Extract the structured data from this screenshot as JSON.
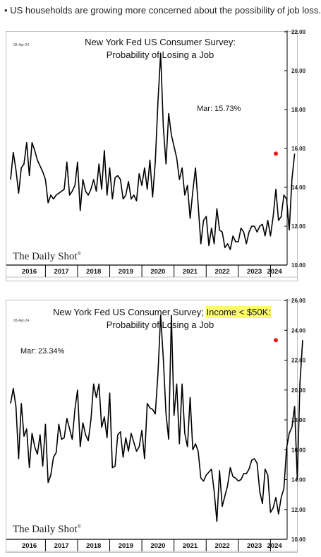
{
  "headline": "US households are growing more concerned about the possibility of job loss.",
  "bullet": "•",
  "logo": "The Daily Shot",
  "logo_mark": "®",
  "years": [
    "2016",
    "2017",
    "2018",
    "2019",
    "2020",
    "2021",
    "2022",
    "2023",
    "2024"
  ],
  "colors": {
    "line": "#000000",
    "marker": "#e8161b",
    "highlight": "#ffff66"
  },
  "chart_data": [
    {
      "type": "line",
      "date_stamp": "08-Apr-24",
      "title_line1": "New York Fed US Consumer Survey:",
      "title_line2": "Probability of Losing a Job",
      "annotation": "Mar:   15.73%",
      "ylim": [
        10,
        22
      ],
      "yticks": [
        "10.00",
        "12.00",
        "14.00",
        "16.00",
        "18.00",
        "20.00",
        "22.00"
      ],
      "x_start": "2015-12",
      "x_end": "2024-03",
      "last_point": {
        "x": "2024-03",
        "y": 15.73
      },
      "series": [
        {
          "values": [
            14.4,
            15.8,
            14.9,
            13.7,
            15,
            15.2,
            16.3,
            14.6,
            16.3,
            15.9,
            15.4,
            15.1,
            14.8,
            14.4,
            13.2,
            13.6,
            13.4,
            13.6,
            13.7,
            13.8,
            13.9,
            15.3,
            13.6,
            13.8,
            14.1,
            15.3,
            12.8,
            14.4,
            13.8,
            13.6,
            13.9,
            14.4,
            13.8,
            15.2,
            13.9,
            15.9,
            13.6,
            15,
            13.4,
            14.5,
            14.6,
            14.4,
            13.4,
            13.6,
            14.3,
            13.4,
            13.6,
            13.3,
            14.7,
            14.1,
            15,
            13.9,
            15.4,
            13.5,
            15.3,
            18.4,
            20.9,
            17.1,
            15.2,
            17.8,
            16.7,
            16.1,
            15.5,
            14.4,
            15,
            13.6,
            14.1,
            12.4,
            13.8,
            15,
            13.1,
            11.1,
            12.3,
            12.5,
            11,
            11.9,
            11.1,
            12.9,
            11.8,
            11.7,
            10.9,
            11.1,
            10.8,
            11.5,
            11.2,
            11.2,
            11.9,
            11.7,
            11.1,
            11.7,
            12,
            12,
            11.7,
            12,
            12.1,
            11.5,
            12.3,
            11.5,
            12.5,
            13.9,
            12.3,
            12.5,
            13.6,
            13.4,
            11.8,
            14.4,
            15.73
          ]
        }
      ]
    },
    {
      "type": "line",
      "date_stamp": "08-Apr-24",
      "title_prefix": "New York Fed US Consumer Survey; ",
      "title_highlight": "Income < $50K:",
      "title_line2": "Probability of Losing a Job",
      "annotation": "Mar:   23.34%",
      "ylim": [
        10,
        26
      ],
      "yticks": [
        "10.00",
        "12.00",
        "14.00",
        "16.00",
        "18.00",
        "20.00",
        "22.00",
        "24.00",
        "26.00"
      ],
      "x_start": "2015-12",
      "x_end": "2024-03",
      "last_point": {
        "x": "2024-03",
        "y": 23.34
      },
      "series": [
        {
          "values": [
            19.1,
            20.1,
            18.9,
            15.4,
            19.1,
            16.9,
            17.4,
            14.8,
            17.1,
            16.2,
            15.7,
            17,
            14.9,
            17.7,
            13.8,
            14.3,
            15.5,
            15.8,
            17.7,
            16.7,
            16.8,
            18.1,
            17.4,
            16.7,
            18.7,
            20,
            16.2,
            17.8,
            17,
            16.6,
            18,
            20.4,
            19.5,
            20.4,
            17.5,
            18.2,
            16.8,
            19.8,
            14.8,
            14.9,
            17,
            17.2,
            15.5,
            16.8,
            15.9,
            17.1,
            16.5,
            15.9,
            16.2,
            17.3,
            15.4,
            19.1,
            18.8,
            18.7,
            18.4,
            21.1,
            25,
            22.1,
            18.4,
            16.7,
            25,
            18.3,
            20.4,
            16.4,
            20.4,
            17.1,
            16.2,
            19.5,
            16,
            16.4,
            15.9,
            14.1,
            13.9,
            14.3,
            14.5,
            14.7,
            13.2,
            11.2,
            14.6,
            12.2,
            12.9,
            13.6,
            14.8,
            14.2,
            14.1,
            13.9,
            14,
            14.4,
            14.4,
            14.7,
            15.3,
            15.4,
            15.1,
            13.2,
            12.4,
            14.7,
            14.3,
            11.8,
            12.1,
            12.8,
            11.7,
            12.8,
            13.4,
            16.1,
            17.1,
            17.5,
            18.9,
            14,
            20.5,
            23.34
          ]
        }
      ]
    }
  ]
}
